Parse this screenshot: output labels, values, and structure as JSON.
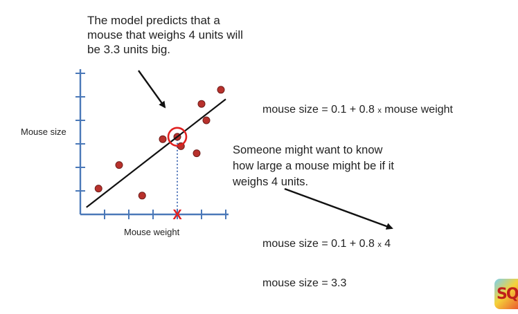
{
  "callout": {
    "lines": [
      "The model predicts that a",
      "mouse that weighs 4 units will",
      "be 3.3 units big."
    ]
  },
  "axes": {
    "ylabel": "Mouse size",
    "xlabel": "Mouse weight"
  },
  "equation": {
    "general_prefix": "mouse size = 0.1 + 0.8",
    "times": "x",
    "general_suffix": "mouse weight",
    "substituted_prefix": "mouse size = 0.1 + 0.8",
    "substituted_value": "4",
    "result": "mouse size = 3.3"
  },
  "note": {
    "lines": [
      "Someone might want to know",
      "how large a mouse might be if it",
      "weighs 4 units."
    ]
  },
  "marker": {
    "text": "X"
  },
  "colors": {
    "axis": "#4a78b8",
    "point_fill": "#b8312c",
    "point_stroke": "#6e1d1a",
    "highlight": "#e02020",
    "guide": "#3a64b0",
    "line": "#111111"
  },
  "chart_data": {
    "type": "scatter",
    "xlim": [
      0,
      6
    ],
    "ylim": [
      0,
      6
    ],
    "x_ticks": [
      1,
      2,
      3,
      4,
      5,
      6
    ],
    "y_ticks": [
      1,
      2,
      3,
      4,
      5,
      6
    ],
    "points": [
      {
        "x": 0.75,
        "y": 1.1
      },
      {
        "x": 1.6,
        "y": 2.1
      },
      {
        "x": 2.55,
        "y": 0.8
      },
      {
        "x": 3.4,
        "y": 3.2
      },
      {
        "x": 4.0,
        "y": 3.3
      },
      {
        "x": 4.15,
        "y": 2.9
      },
      {
        "x": 4.8,
        "y": 2.6
      },
      {
        "x": 5.0,
        "y": 4.7
      },
      {
        "x": 5.2,
        "y": 4.0
      },
      {
        "x": 5.8,
        "y": 5.3
      }
    ],
    "fit": {
      "intercept": 0.1,
      "slope": 0.8,
      "x_range": [
        0.25,
        6.0
      ]
    },
    "highlight": {
      "x": 4,
      "y": 3.3
    }
  }
}
